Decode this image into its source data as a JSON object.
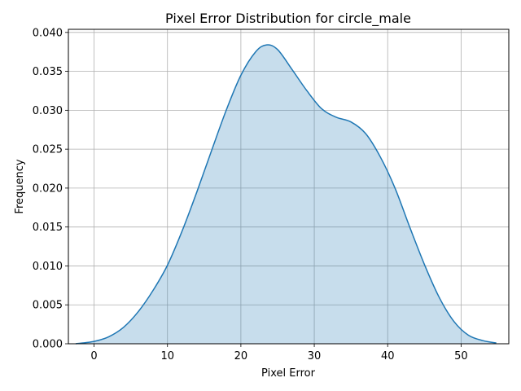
{
  "chart_data": {
    "type": "area",
    "title": "Pixel Error Distribution for circle_male",
    "xlabel": "Pixel Error",
    "ylabel": "Frequency",
    "xlim": [
      -3.5,
      56.5
    ],
    "ylim": [
      0,
      0.0404
    ],
    "xticks": [
      0,
      10,
      20,
      30,
      40,
      50
    ],
    "yticks": [
      0.0,
      0.005,
      0.01,
      0.015,
      0.02,
      0.025,
      0.03,
      0.035,
      0.04
    ],
    "ytick_labels": [
      "0.000",
      "0.005",
      "0.010",
      "0.015",
      "0.020",
      "0.025",
      "0.030",
      "0.035",
      "0.040"
    ],
    "grid": true,
    "series": [
      {
        "color": "#1f77b4",
        "fill_color": "#1f77b4",
        "fill_opacity": 0.25,
        "x": [
          -2.5,
          0,
          2,
          4,
          6,
          8,
          10,
          12,
          14,
          16,
          18,
          20,
          22,
          23.5,
          25,
          27,
          29,
          31,
          33,
          35,
          37,
          39,
          41,
          43,
          45,
          47,
          49,
          51,
          53,
          54.8
        ],
        "y": [
          0.0,
          0.0003,
          0.0009,
          0.0021,
          0.0041,
          0.0068,
          0.0101,
          0.0145,
          0.0195,
          0.0248,
          0.03,
          0.0345,
          0.0375,
          0.0384,
          0.0378,
          0.0352,
          0.0325,
          0.0302,
          0.0291,
          0.0285,
          0.027,
          0.024,
          0.02,
          0.015,
          0.0102,
          0.006,
          0.0029,
          0.0011,
          0.0004,
          0.0001
        ]
      }
    ]
  }
}
